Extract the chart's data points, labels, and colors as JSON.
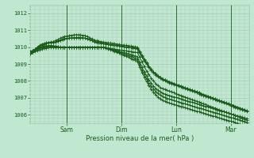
{
  "bg_color": "#c0e8d0",
  "grid_color": "#a8c8b8",
  "line_color": "#1a5c1a",
  "ylim": [
    1005.5,
    1012.5
  ],
  "xlim": [
    0,
    96
  ],
  "ylabel_ticks": [
    1006,
    1007,
    1008,
    1009,
    1010,
    1011,
    1012
  ],
  "x_tick_positions": [
    16,
    40,
    64,
    88
  ],
  "x_tick_labels": [
    "Sam",
    "Dim",
    "Lun",
    "Mar"
  ],
  "xlabel": "Pression niveau de la mer( hPa )",
  "series": [
    [
      9.65,
      9.7,
      9.75,
      9.8,
      9.85,
      9.9,
      9.93,
      9.95,
      9.97,
      9.98,
      9.99,
      10.0,
      10.0,
      10.0,
      10.0,
      10.0,
      10.0,
      10.0,
      10.0,
      10.0,
      10.0,
      10.0,
      10.0,
      10.0,
      10.0,
      10.0,
      10.0,
      10.0,
      10.0,
      10.0,
      10.0,
      10.0,
      10.0,
      9.98,
      9.95,
      9.92,
      9.9,
      9.88,
      9.86,
      9.84,
      9.82,
      9.8,
      9.78,
      9.76,
      9.74,
      9.72,
      9.7,
      9.68,
      9.4,
      9.12,
      8.85,
      8.6,
      8.38,
      8.18,
      8.0,
      7.85,
      7.72,
      7.62,
      7.55,
      7.5,
      7.45,
      7.4,
      7.35,
      7.3,
      7.25,
      7.2,
      7.15,
      7.1,
      7.05,
      7.0,
      6.95,
      6.9,
      6.85,
      6.8,
      6.75,
      6.7,
      6.65,
      6.6,
      6.55,
      6.5,
      6.45,
      6.4,
      6.35,
      6.3,
      6.25,
      6.2,
      6.15,
      6.1,
      6.05,
      6.0,
      5.95,
      5.9,
      5.85,
      5.8,
      5.75,
      5.7
    ],
    [
      9.7,
      9.75,
      9.82,
      9.88,
      9.93,
      9.97,
      10.0,
      10.02,
      10.03,
      10.03,
      10.02,
      10.0,
      10.0,
      10.0,
      10.0,
      10.0,
      10.0,
      10.0,
      10.0,
      10.0,
      10.0,
      10.0,
      10.0,
      10.0,
      10.0,
      10.0,
      10.0,
      10.0,
      10.0,
      10.0,
      10.0,
      10.0,
      10.0,
      9.98,
      9.95,
      9.92,
      9.88,
      9.84,
      9.8,
      9.76,
      9.72,
      9.68,
      9.64,
      9.6,
      9.56,
      9.52,
      9.48,
      9.44,
      9.1,
      8.82,
      8.55,
      8.3,
      8.08,
      7.88,
      7.7,
      7.56,
      7.44,
      7.35,
      7.28,
      7.22,
      7.18,
      7.14,
      7.1,
      7.06,
      7.02,
      6.98,
      6.94,
      6.9,
      6.86,
      6.82,
      6.78,
      6.74,
      6.7,
      6.66,
      6.62,
      6.58,
      6.54,
      6.5,
      6.46,
      6.42,
      6.38,
      6.34,
      6.3,
      6.26,
      6.22,
      6.18,
      6.14,
      6.1,
      6.06,
      6.02,
      5.98,
      5.94,
      5.9,
      5.86,
      5.82,
      5.78
    ],
    [
      9.72,
      9.78,
      9.85,
      9.91,
      9.96,
      10.0,
      10.03,
      10.05,
      10.06,
      10.06,
      10.05,
      10.03,
      10.01,
      10.0,
      10.0,
      10.0,
      10.0,
      10.0,
      10.0,
      10.0,
      10.0,
      10.0,
      10.0,
      10.0,
      10.0,
      10.0,
      10.0,
      10.0,
      10.0,
      10.0,
      10.0,
      10.0,
      10.0,
      9.97,
      9.94,
      9.9,
      9.85,
      9.8,
      9.75,
      9.7,
      9.65,
      9.6,
      9.55,
      9.5,
      9.45,
      9.4,
      9.35,
      9.3,
      8.95,
      8.65,
      8.38,
      8.13,
      7.9,
      7.7,
      7.53,
      7.38,
      7.26,
      7.16,
      7.08,
      7.02,
      6.97,
      6.93,
      6.89,
      6.85,
      6.81,
      6.77,
      6.73,
      6.69,
      6.65,
      6.61,
      6.57,
      6.53,
      6.49,
      6.45,
      6.41,
      6.37,
      6.33,
      6.29,
      6.25,
      6.21,
      6.17,
      6.13,
      6.09,
      6.05,
      6.01,
      5.97,
      5.93,
      5.89,
      5.85,
      5.81,
      5.77,
      5.73,
      5.69,
      5.65,
      5.61,
      5.57
    ],
    [
      9.74,
      9.81,
      9.88,
      9.94,
      9.99,
      10.03,
      10.06,
      10.08,
      10.09,
      10.09,
      10.08,
      10.06,
      10.03,
      10.01,
      10.0,
      10.0,
      10.0,
      10.0,
      10.0,
      10.0,
      10.0,
      10.0,
      10.0,
      10.0,
      10.0,
      10.0,
      10.0,
      10.0,
      10.0,
      10.0,
      10.0,
      10.0,
      9.99,
      9.95,
      9.91,
      9.86,
      9.81,
      9.76,
      9.7,
      9.64,
      9.58,
      9.52,
      9.46,
      9.4,
      9.34,
      9.28,
      9.22,
      9.16,
      8.8,
      8.5,
      8.22,
      7.96,
      7.73,
      7.52,
      7.34,
      7.18,
      7.05,
      6.95,
      6.87,
      6.8,
      6.75,
      6.7,
      6.66,
      6.62,
      6.58,
      6.54,
      6.5,
      6.46,
      6.42,
      6.38,
      6.34,
      6.3,
      6.26,
      6.22,
      6.18,
      6.14,
      6.1,
      6.06,
      6.02,
      5.98,
      5.94,
      5.9,
      5.86,
      5.82,
      5.78,
      5.74,
      5.7,
      5.66,
      5.62,
      5.58,
      5.54,
      5.5,
      5.46,
      5.42,
      5.38,
      5.34
    ],
    [
      9.65,
      9.75,
      9.88,
      10.0,
      10.1,
      10.18,
      10.22,
      10.25,
      10.28,
      10.3,
      10.32,
      10.38,
      10.45,
      10.52,
      10.58,
      10.62,
      10.65,
      10.68,
      10.7,
      10.72,
      10.73,
      10.73,
      10.72,
      10.7,
      10.68,
      10.62,
      10.55,
      10.48,
      10.42,
      10.38,
      10.35,
      10.32,
      10.3,
      10.28,
      10.26,
      10.24,
      10.22,
      10.2,
      10.18,
      10.16,
      10.14,
      10.12,
      10.1,
      10.08,
      10.06,
      10.04,
      10.02,
      10.0,
      9.75,
      9.5,
      9.28,
      9.08,
      8.88,
      8.7,
      8.55,
      8.42,
      8.3,
      8.2,
      8.12,
      8.05,
      8.0,
      7.95,
      7.9,
      7.85,
      7.8,
      7.75,
      7.7,
      7.65,
      7.6,
      7.55,
      7.5,
      7.45,
      7.4,
      7.35,
      7.3,
      7.25,
      7.2,
      7.15,
      7.1,
      7.05,
      7.0,
      6.95,
      6.9,
      6.85,
      6.8,
      6.75,
      6.7,
      6.65,
      6.6,
      6.55,
      6.5,
      6.45,
      6.4,
      6.35,
      6.3,
      6.25
    ],
    [
      9.6,
      9.7,
      9.82,
      9.94,
      10.04,
      10.12,
      10.18,
      10.22,
      10.25,
      10.27,
      10.28,
      10.3,
      10.35,
      10.4,
      10.45,
      10.48,
      10.5,
      10.52,
      10.53,
      10.54,
      10.55,
      10.55,
      10.55,
      10.55,
      10.52,
      10.48,
      10.43,
      10.38,
      10.33,
      10.28,
      10.25,
      10.22,
      10.2,
      10.18,
      10.16,
      10.14,
      10.12,
      10.1,
      10.08,
      10.06,
      10.04,
      10.02,
      10.0,
      9.98,
      9.96,
      9.94,
      9.92,
      9.9,
      9.65,
      9.42,
      9.2,
      9.0,
      8.82,
      8.65,
      8.5,
      8.37,
      8.26,
      8.16,
      8.08,
      8.02,
      7.96,
      7.9,
      7.85,
      7.8,
      7.75,
      7.7,
      7.65,
      7.6,
      7.55,
      7.5,
      7.45,
      7.4,
      7.35,
      7.3,
      7.25,
      7.2,
      7.15,
      7.1,
      7.05,
      7.0,
      6.95,
      6.9,
      6.85,
      6.8,
      6.75,
      6.7,
      6.65,
      6.6,
      6.55,
      6.5,
      6.45,
      6.4,
      6.35,
      6.3,
      6.25,
      6.2
    ],
    [
      9.62,
      9.72,
      9.85,
      9.97,
      10.06,
      10.14,
      10.2,
      10.24,
      10.26,
      10.28,
      10.29,
      10.31,
      10.36,
      10.42,
      10.47,
      10.5,
      10.52,
      10.54,
      10.55,
      10.56,
      10.57,
      10.57,
      10.56,
      10.55,
      10.53,
      10.5,
      10.45,
      10.4,
      10.35,
      10.3,
      10.27,
      10.24,
      10.22,
      10.2,
      10.18,
      10.16,
      10.14,
      10.12,
      10.1,
      10.08,
      10.06,
      10.04,
      10.02,
      10.0,
      9.98,
      9.96,
      9.94,
      9.92,
      9.68,
      9.45,
      9.23,
      9.03,
      8.85,
      8.68,
      8.54,
      8.41,
      8.3,
      8.21,
      8.13,
      8.07,
      8.01,
      7.95,
      7.9,
      7.85,
      7.8,
      7.75,
      7.7,
      7.65,
      7.6,
      7.55,
      7.5,
      7.45,
      7.4,
      7.35,
      7.3,
      7.25,
      7.2,
      7.15,
      7.1,
      7.05,
      7.0,
      6.95,
      6.9,
      6.85,
      6.8,
      6.75,
      6.7,
      6.65,
      6.6,
      6.55,
      6.5,
      6.45,
      6.4,
      6.35,
      6.3,
      6.25
    ]
  ]
}
